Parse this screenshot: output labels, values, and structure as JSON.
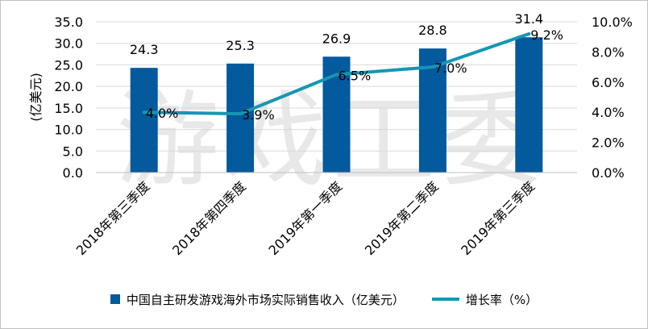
{
  "watermark": "游戏工委",
  "colors": {
    "bar": "#035a9c",
    "line": "#1696b3",
    "grid": "#d9d9d9",
    "axis": "#bfbfbf"
  },
  "chart_data": {
    "type": "bar",
    "categories": [
      "2018年第三季度",
      "2018年第四季度",
      "2019年第一季度",
      "2019年第二季度",
      "2019年第三季度"
    ],
    "series": [
      {
        "name": "中国自主研发游戏海外市场实际销售收入（亿美元）",
        "type": "bar",
        "axis": "left",
        "values": [
          24.3,
          25.3,
          26.9,
          28.8,
          31.4
        ],
        "labels": [
          "24.3",
          "25.3",
          "26.9",
          "28.8",
          "31.4"
        ]
      },
      {
        "name": "增长率（%）",
        "type": "line",
        "axis": "right",
        "values": [
          4.0,
          3.9,
          6.5,
          7.0,
          9.2
        ],
        "labels": [
          "4.0%",
          "3.9%",
          "6.5%",
          "7.0%",
          "9.2%"
        ]
      }
    ],
    "y_left": {
      "label": "(亿美元)",
      "min": 0,
      "max": 35,
      "ticks": [
        "0.0",
        "5.0",
        "10.0",
        "15.0",
        "20.0",
        "25.0",
        "30.0",
        "35.0"
      ]
    },
    "y_right": {
      "label": "",
      "min": 0,
      "max": 10,
      "ticks": [
        "0.0%",
        "2.0%",
        "4.0%",
        "6.0%",
        "8.0%",
        "10.0%"
      ]
    },
    "grid": true,
    "legend_position": "bottom"
  }
}
